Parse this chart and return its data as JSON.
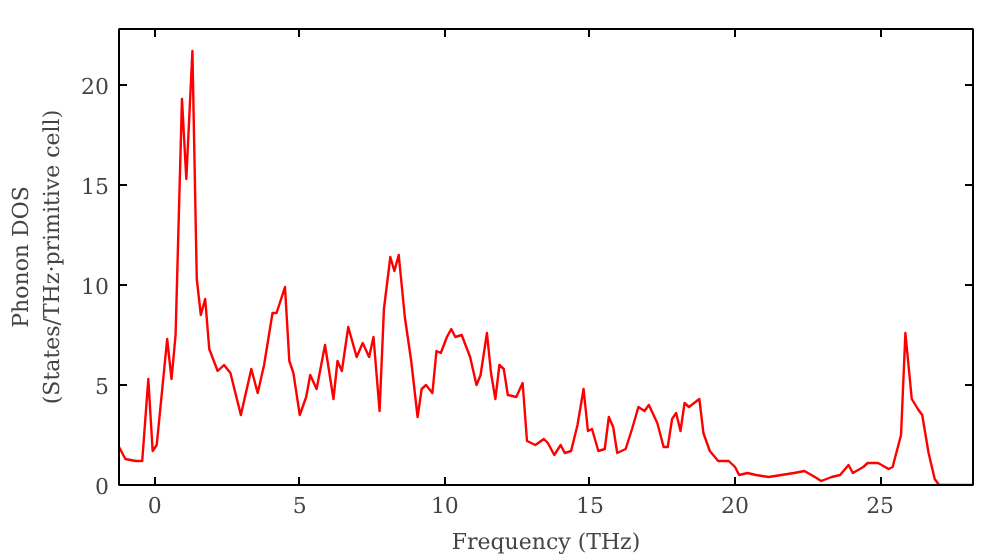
{
  "chart_data": {
    "type": "line",
    "xlabel": "Frequency (THz)",
    "ylabel": "Phonon DOS\n(States/THz·primitive cell)",
    "x": [
      -1.23,
      -1.01,
      -0.65,
      -0.43,
      -0.22,
      -0.07,
      0.07,
      0.43,
      0.58,
      0.72,
      0.94,
      1.09,
      1.3,
      1.45,
      1.59,
      1.74,
      1.88,
      2.17,
      2.39,
      2.61,
      2.97,
      3.33,
      3.55,
      3.77,
      4.06,
      4.2,
      4.49,
      4.64,
      4.78,
      5.0,
      5.22,
      5.36,
      5.58,
      5.87,
      6.16,
      6.3,
      6.45,
      6.67,
      6.96,
      7.17,
      7.39,
      7.54,
      7.75,
      7.9,
      8.12,
      8.26,
      8.41,
      8.62,
      8.84,
      9.06,
      9.2,
      9.35,
      9.57,
      9.71,
      9.86,
      10.07,
      10.22,
      10.36,
      10.58,
      10.87,
      11.09,
      11.23,
      11.45,
      11.59,
      11.74,
      11.88,
      12.03,
      12.17,
      12.46,
      12.68,
      12.83,
      13.12,
      13.41,
      13.55,
      13.77,
      13.99,
      14.13,
      14.35,
      14.57,
      14.78,
      14.93,
      15.07,
      15.29,
      15.51,
      15.65,
      15.8,
      15.94,
      16.23,
      16.45,
      16.67,
      16.88,
      17.03,
      17.32,
      17.54,
      17.68,
      17.83,
      17.97,
      18.12,
      18.26,
      18.41,
      18.77,
      18.91,
      19.13,
      19.42,
      19.78,
      20.0,
      20.14,
      20.43,
      20.72,
      21.16,
      21.59,
      22.03,
      22.39,
      22.75,
      22.97,
      23.33,
      23.62,
      23.91,
      24.06,
      24.42,
      24.57,
      24.93,
      25.29,
      25.43,
      25.72,
      25.87,
      26.09,
      26.3,
      26.45,
      26.67,
      26.88,
      27.03,
      28.19
    ],
    "series": [
      {
        "color": "#ff0000",
        "values": [
          1.9,
          1.3,
          1.2,
          1.2,
          5.3,
          1.7,
          2.0,
          7.3,
          5.3,
          7.5,
          19.3,
          15.3,
          21.7,
          10.3,
          8.5,
          9.3,
          6.8,
          5.7,
          6.0,
          5.6,
          3.5,
          5.8,
          4.6,
          6.0,
          8.6,
          8.6,
          9.9,
          6.2,
          5.6,
          3.5,
          4.4,
          5.5,
          4.8,
          7.0,
          4.3,
          6.2,
          5.7,
          7.9,
          6.4,
          7.1,
          6.4,
          7.4,
          3.7,
          8.8,
          11.4,
          10.7,
          11.5,
          8.4,
          6.2,
          3.4,
          4.8,
          5.0,
          4.6,
          6.7,
          6.6,
          7.4,
          7.8,
          7.4,
          7.5,
          6.4,
          5.0,
          5.5,
          7.6,
          5.6,
          4.3,
          6.0,
          5.8,
          4.5,
          4.4,
          5.1,
          2.2,
          2.0,
          2.3,
          2.1,
          1.5,
          2.0,
          1.6,
          1.7,
          3.0,
          4.8,
          2.7,
          2.8,
          1.7,
          1.8,
          3.4,
          2.9,
          1.6,
          1.8,
          2.8,
          3.9,
          3.7,
          4.0,
          3.1,
          1.9,
          1.9,
          3.3,
          3.6,
          2.7,
          4.1,
          3.9,
          4.3,
          2.6,
          1.7,
          1.2,
          1.2,
          0.9,
          0.5,
          0.6,
          0.5,
          0.4,
          0.5,
          0.6,
          0.7,
          0.4,
          0.2,
          0.4,
          0.5,
          1.0,
          0.6,
          0.9,
          1.1,
          1.1,
          0.8,
          0.9,
          2.5,
          7.6,
          4.3,
          3.8,
          3.5,
          1.6,
          0.3,
          0.0,
          0.0
        ]
      }
    ],
    "xlim": [
      -1.23,
      28.2
    ],
    "ylim": [
      0,
      22.8
    ],
    "xticks": [
      0,
      5,
      10,
      15,
      20,
      25
    ],
    "yticks": [
      0,
      5,
      10,
      15,
      20
    ]
  }
}
